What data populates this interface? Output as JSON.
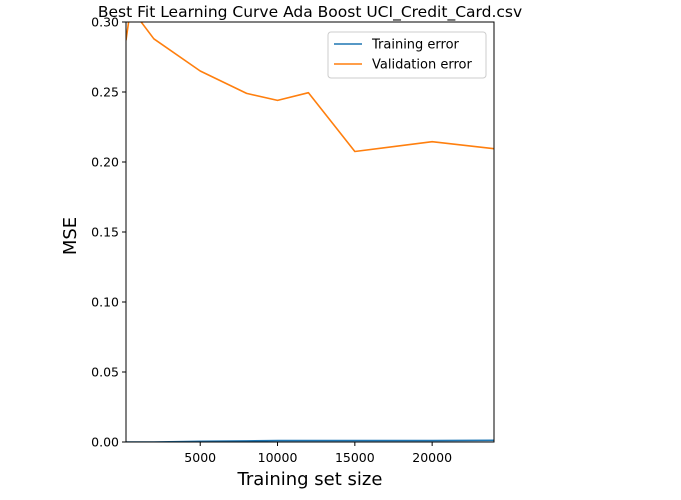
{
  "chart_data": {
    "type": "line",
    "title": "Best Fit Learning Curve Ada Boost UCI_Credit_Card.csv",
    "xlabel": "Training set size",
    "ylabel": "MSE",
    "xlim": [
      200,
      24000
    ],
    "ylim": [
      0,
      0.3
    ],
    "xticks": [
      5000,
      10000,
      15000,
      20000
    ],
    "xtick_labels": [
      "5000",
      "10000",
      "15000",
      "20000"
    ],
    "yticks": [
      0.0,
      0.05,
      0.1,
      0.15,
      0.2,
      0.25,
      0.3
    ],
    "ytick_labels": [
      "0.00",
      "0.05",
      "0.10",
      "0.15",
      "0.20",
      "0.25",
      "0.30"
    ],
    "grid": false,
    "legend_position": "top-right",
    "series": [
      {
        "name": "Training error",
        "color": "#1f77b4",
        "x": [
          200,
          500,
          2000,
          5000,
          8000,
          10000,
          12000,
          15000,
          20000,
          24000
        ],
        "y": [
          0.0,
          0.0,
          0.0,
          0.0005,
          0.0008,
          0.001,
          0.001,
          0.001,
          0.001,
          0.0012
        ]
      },
      {
        "name": "Validation error",
        "color": "#ff7f0e",
        "x": [
          200,
          500,
          2000,
          5000,
          8000,
          10000,
          12000,
          15000,
          20000,
          24000
        ],
        "y": [
          0.287,
          0.31,
          0.288,
          0.265,
          0.249,
          0.244,
          0.2495,
          0.2075,
          0.2145,
          0.2095
        ]
      }
    ]
  }
}
